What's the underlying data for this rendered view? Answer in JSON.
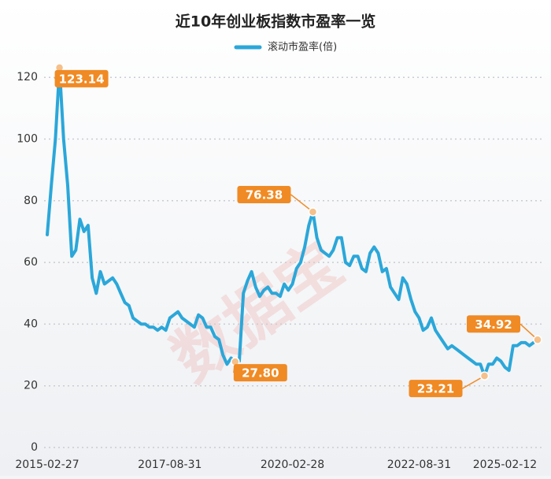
{
  "chart_data": {
    "type": "line",
    "title": "近10年创业板指数市盈率一览",
    "watermark": "数据宝",
    "categories": [
      "2015-02-27",
      null,
      null,
      null,
      null,
      null,
      null,
      null,
      null,
      null,
      null,
      null,
      null,
      null,
      null,
      null,
      null,
      null,
      null,
      null,
      null,
      null,
      null,
      null,
      null,
      null,
      null,
      null,
      null,
      null,
      "2017-08-31",
      null,
      null,
      null,
      null,
      null,
      null,
      null,
      null,
      null,
      null,
      null,
      null,
      null,
      null,
      null,
      null,
      null,
      null,
      null,
      null,
      null,
      null,
      null,
      null,
      null,
      null,
      null,
      null,
      null,
      "2020-02-28",
      null,
      null,
      null,
      null,
      null,
      null,
      null,
      null,
      null,
      null,
      null,
      null,
      null,
      null,
      null,
      null,
      null,
      null,
      null,
      null,
      null,
      null,
      null,
      null,
      null,
      null,
      null,
      null,
      null,
      null,
      "2022-08-31",
      null,
      null,
      null,
      null,
      null,
      null,
      null,
      null,
      null,
      null,
      null,
      null,
      null,
      null,
      null,
      null,
      null,
      null,
      null,
      null,
      "2025-02-12",
      null,
      null,
      null,
      null,
      null,
      null,
      null,
      null
    ],
    "series": [
      {
        "name": "滚动市盈率(倍)",
        "color": "#2ba7d9",
        "values": [
          69,
          85,
          100,
          123.14,
          100,
          85,
          62,
          64,
          74,
          70,
          72,
          55,
          50,
          57,
          53,
          54,
          55,
          53,
          50,
          47,
          46,
          42,
          41,
          40,
          40,
          39,
          39,
          38,
          39,
          38,
          42,
          43,
          44,
          42,
          41,
          40,
          39,
          43,
          42,
          39,
          39,
          36,
          35,
          30,
          27,
          29,
          27.8,
          28,
          50,
          54,
          57,
          52,
          49,
          51,
          52,
          50,
          50,
          49,
          53,
          51,
          53,
          58,
          60,
          65,
          72,
          76.38,
          68,
          64,
          63,
          62,
          64,
          68,
          68,
          60,
          59,
          62,
          62,
          58,
          57,
          63,
          65,
          63,
          57,
          58,
          52,
          50,
          48,
          55,
          53,
          48,
          44,
          42,
          38,
          39,
          42,
          38,
          36,
          34,
          32,
          33,
          32,
          31,
          30,
          29,
          28,
          27,
          27,
          23.21,
          27,
          27,
          29,
          28,
          26,
          25,
          33,
          33,
          34,
          34,
          33,
          34,
          34.92
        ],
        "value_labels": [
          null,
          null,
          null,
          "123.14",
          null,
          null,
          null,
          null,
          null,
          null,
          null,
          null,
          null,
          null,
          null,
          null,
          null,
          null,
          null,
          null,
          null,
          null,
          null,
          null,
          null,
          null,
          null,
          null,
          null,
          null,
          null,
          null,
          null,
          null,
          null,
          null,
          null,
          null,
          null,
          null,
          null,
          null,
          null,
          null,
          null,
          null,
          "27.80",
          null,
          null,
          null,
          null,
          null,
          null,
          null,
          null,
          null,
          null,
          null,
          null,
          null,
          null,
          null,
          null,
          null,
          null,
          "76.38",
          null,
          null,
          null,
          null,
          null,
          null,
          null,
          null,
          null,
          null,
          null,
          null,
          null,
          null,
          null,
          null,
          null,
          null,
          null,
          null,
          null,
          null,
          null,
          null,
          null,
          null,
          null,
          null,
          null,
          null,
          null,
          null,
          null,
          null,
          null,
          null,
          null,
          null,
          null,
          null,
          null,
          "23.21",
          null,
          null,
          null,
          null,
          null,
          null,
          null,
          null,
          null,
          null,
          null,
          null,
          "34.92"
        ]
      }
    ],
    "ylim": [
      0,
      125
    ],
    "yticks": [
      0,
      20,
      40,
      60,
      80,
      100,
      120
    ],
    "grid": true,
    "label_color": "#f08a24"
  }
}
